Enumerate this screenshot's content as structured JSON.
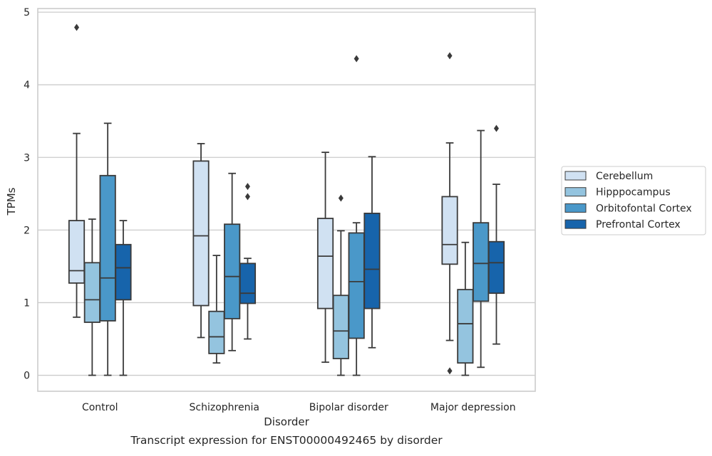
{
  "chart_data": {
    "type": "box",
    "title": "",
    "caption": "Transcript expression for ENST00000492465 by disorder",
    "xlabel": "Disorder",
    "ylabel": "TPMs",
    "categories": [
      "Control",
      "Schizophrenia",
      "Bipolar disorder",
      "Major depression"
    ],
    "ylim": [
      -0.22,
      5.05
    ],
    "yticks": [
      0,
      1,
      2,
      3,
      4,
      5
    ],
    "grid": "horizontal",
    "legend": {
      "placement": "right",
      "entries": [
        "Cerebellum",
        "Hipppocampus",
        "Orbitofontal Cortex",
        "Prefrontal Cortex"
      ]
    },
    "series": [
      {
        "name": "Cerebellum",
        "color": "#d0e1f2",
        "boxes": [
          {
            "min": 0.8,
            "q1": 1.27,
            "median": 1.44,
            "q3": 2.13,
            "max": 3.33,
            "outliers": [
              4.79
            ]
          },
          {
            "min": 0.52,
            "q1": 0.96,
            "median": 1.92,
            "q3": 2.95,
            "max": 3.19,
            "outliers": []
          },
          {
            "min": 0.18,
            "q1": 0.92,
            "median": 1.64,
            "q3": 2.16,
            "max": 3.07,
            "outliers": []
          },
          {
            "min": 0.48,
            "q1": 1.53,
            "median": 1.8,
            "q3": 2.46,
            "max": 3.2,
            "outliers": [
              0.06,
              4.4
            ]
          }
        ]
      },
      {
        "name": "Hipppocampus",
        "color": "#94c4df",
        "boxes": [
          {
            "min": 0.0,
            "q1": 0.73,
            "median": 1.04,
            "q3": 1.55,
            "max": 2.15,
            "outliers": []
          },
          {
            "min": 0.17,
            "q1": 0.3,
            "median": 0.53,
            "q3": 0.88,
            "max": 1.65,
            "outliers": []
          },
          {
            "min": 0.0,
            "q1": 0.23,
            "median": 0.61,
            "q3": 1.1,
            "max": 1.99,
            "outliers": [
              2.44
            ]
          },
          {
            "min": 0.0,
            "q1": 0.17,
            "median": 0.71,
            "q3": 1.18,
            "max": 1.83,
            "outliers": []
          }
        ]
      },
      {
        "name": "Orbitofontal Cortex",
        "color": "#4a98c9",
        "boxes": [
          {
            "min": 0.0,
            "q1": 0.75,
            "median": 1.34,
            "q3": 2.75,
            "max": 3.47,
            "outliers": []
          },
          {
            "min": 0.34,
            "q1": 0.78,
            "median": 1.36,
            "q3": 2.08,
            "max": 2.78,
            "outliers": []
          },
          {
            "min": 0.0,
            "q1": 0.51,
            "median": 1.29,
            "q3": 1.96,
            "max": 2.1,
            "outliers": [
              4.36
            ]
          },
          {
            "min": 0.11,
            "q1": 1.02,
            "median": 1.54,
            "q3": 2.1,
            "max": 3.37,
            "outliers": []
          }
        ]
      },
      {
        "name": "Prefrontal Cortex",
        "color": "#1764ab",
        "boxes": [
          {
            "min": 0.0,
            "q1": 1.04,
            "median": 1.48,
            "q3": 1.8,
            "max": 2.13,
            "outliers": []
          },
          {
            "min": 0.5,
            "q1": 0.99,
            "median": 1.13,
            "q3": 1.54,
            "max": 1.61,
            "outliers": [
              2.46,
              2.6
            ]
          },
          {
            "min": 0.38,
            "q1": 0.92,
            "median": 1.46,
            "q3": 2.23,
            "max": 3.01,
            "outliers": []
          },
          {
            "min": 0.43,
            "q1": 1.13,
            "median": 1.55,
            "q3": 1.84,
            "max": 2.63,
            "outliers": [
              3.4
            ]
          }
        ]
      }
    ]
  }
}
